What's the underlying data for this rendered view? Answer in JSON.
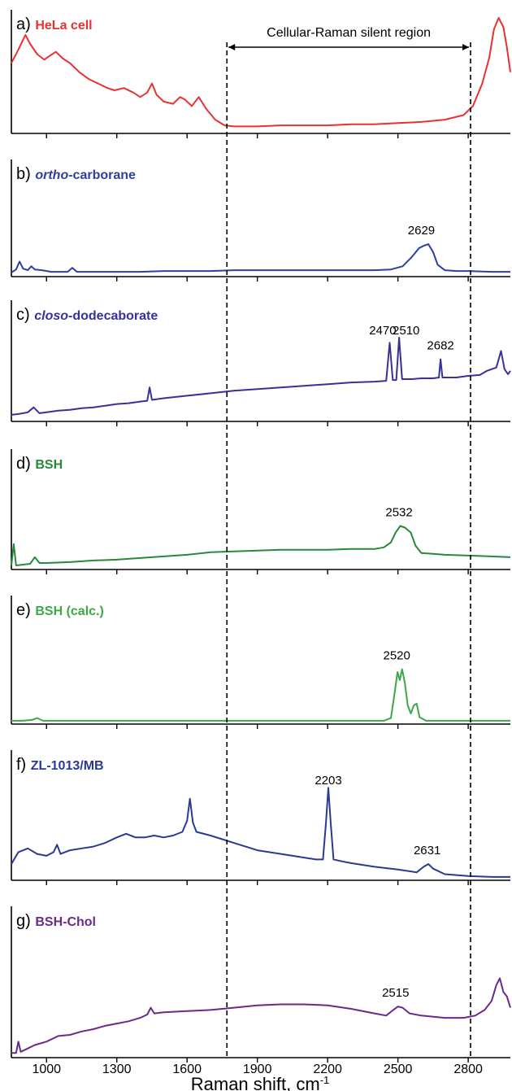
{
  "chart_data": {
    "type": "line",
    "xlabel": "Raman shift, cm",
    "xlabel_sup": "-1",
    "xlim": [
      850,
      2980
    ],
    "x_ticks": [
      "1000",
      "1300",
      "1600",
      "1900",
      "2200",
      "2500",
      "2800"
    ],
    "silent_region": {
      "label": "Cellular-Raman silent region",
      "x_start": 1770,
      "x_end": 2810
    },
    "panels": [
      {
        "letter": "a)",
        "label": "HeLa cell",
        "color": "#e8322f",
        "peak_labels": [],
        "points": [
          [
            850,
            0.6
          ],
          [
            880,
            0.72
          ],
          [
            910,
            0.85
          ],
          [
            930,
            0.77
          ],
          [
            960,
            0.68
          ],
          [
            990,
            0.63
          ],
          [
            1010,
            0.66
          ],
          [
            1040,
            0.7
          ],
          [
            1070,
            0.64
          ],
          [
            1100,
            0.6
          ],
          [
            1140,
            0.52
          ],
          [
            1180,
            0.46
          ],
          [
            1220,
            0.42
          ],
          [
            1260,
            0.38
          ],
          [
            1290,
            0.36
          ],
          [
            1330,
            0.38
          ],
          [
            1370,
            0.34
          ],
          [
            1400,
            0.3
          ],
          [
            1430,
            0.34
          ],
          [
            1450,
            0.42
          ],
          [
            1470,
            0.32
          ],
          [
            1500,
            0.26
          ],
          [
            1540,
            0.24
          ],
          [
            1570,
            0.3
          ],
          [
            1590,
            0.28
          ],
          [
            1620,
            0.22
          ],
          [
            1650,
            0.3
          ],
          [
            1680,
            0.2
          ],
          [
            1720,
            0.1
          ],
          [
            1760,
            0.05
          ],
          [
            1800,
            0.04
          ],
          [
            1900,
            0.04
          ],
          [
            2000,
            0.05
          ],
          [
            2100,
            0.05
          ],
          [
            2200,
            0.05
          ],
          [
            2300,
            0.06
          ],
          [
            2400,
            0.06
          ],
          [
            2500,
            0.07
          ],
          [
            2600,
            0.08
          ],
          [
            2700,
            0.1
          ],
          [
            2780,
            0.14
          ],
          [
            2820,
            0.22
          ],
          [
            2860,
            0.42
          ],
          [
            2890,
            0.65
          ],
          [
            2910,
            0.9
          ],
          [
            2930,
            1.0
          ],
          [
            2950,
            0.92
          ],
          [
            2965,
            0.74
          ],
          [
            2980,
            0.52
          ]
        ]
      },
      {
        "letter": "b)",
        "label": "ortho-carborane",
        "label_italic": "ortho",
        "label_rest": "-carborane",
        "color": "#2f3fa0",
        "peak_labels": [
          {
            "text": "2629",
            "x": 2600
          }
        ],
        "points": [
          [
            850,
            0.02
          ],
          [
            870,
            0.06
          ],
          [
            885,
            0.16
          ],
          [
            900,
            0.07
          ],
          [
            920,
            0.05
          ],
          [
            935,
            0.1
          ],
          [
            950,
            0.06
          ],
          [
            980,
            0.05
          ],
          [
            1000,
            0.04
          ],
          [
            1020,
            0.03
          ],
          [
            1060,
            0.03
          ],
          [
            1090,
            0.03
          ],
          [
            1110,
            0.08
          ],
          [
            1130,
            0.03
          ],
          [
            1200,
            0.03
          ],
          [
            1300,
            0.03
          ],
          [
            1400,
            0.03
          ],
          [
            1500,
            0.04
          ],
          [
            1600,
            0.04
          ],
          [
            1700,
            0.04
          ],
          [
            1800,
            0.05
          ],
          [
            1900,
            0.05
          ],
          [
            2000,
            0.05
          ],
          [
            2100,
            0.05
          ],
          [
            2200,
            0.05
          ],
          [
            2300,
            0.05
          ],
          [
            2400,
            0.05
          ],
          [
            2470,
            0.06
          ],
          [
            2520,
            0.1
          ],
          [
            2560,
            0.22
          ],
          [
            2590,
            0.33
          ],
          [
            2610,
            0.36
          ],
          [
            2630,
            0.38
          ],
          [
            2650,
            0.28
          ],
          [
            2670,
            0.12
          ],
          [
            2700,
            0.05
          ],
          [
            2750,
            0.04
          ],
          [
            2800,
            0.04
          ],
          [
            2900,
            0.03
          ],
          [
            2980,
            0.03
          ]
        ]
      },
      {
        "letter": "c)",
        "label": "closo-dodecaborate",
        "label_italic": "closo",
        "label_rest": "-dodecaborate",
        "color": "#38319a",
        "peak_labels": [
          {
            "text": "2470",
            "x": 2435
          },
          {
            "text": "2510",
            "x": 2535
          },
          {
            "text": "2682",
            "x": 2682
          }
        ],
        "points": [
          [
            850,
            0.05
          ],
          [
            880,
            0.06
          ],
          [
            920,
            0.08
          ],
          [
            945,
            0.14
          ],
          [
            970,
            0.07
          ],
          [
            1000,
            0.08
          ],
          [
            1050,
            0.1
          ],
          [
            1100,
            0.11
          ],
          [
            1150,
            0.13
          ],
          [
            1200,
            0.14
          ],
          [
            1250,
            0.16
          ],
          [
            1300,
            0.18
          ],
          [
            1350,
            0.19
          ],
          [
            1400,
            0.21
          ],
          [
            1430,
            0.22
          ],
          [
            1440,
            0.38
          ],
          [
            1450,
            0.23
          ],
          [
            1500,
            0.25
          ],
          [
            1600,
            0.28
          ],
          [
            1700,
            0.31
          ],
          [
            1800,
            0.34
          ],
          [
            1900,
            0.36
          ],
          [
            2000,
            0.38
          ],
          [
            2100,
            0.4
          ],
          [
            2200,
            0.42
          ],
          [
            2300,
            0.44
          ],
          [
            2400,
            0.45
          ],
          [
            2450,
            0.46
          ],
          [
            2465,
            0.92
          ],
          [
            2478,
            0.47
          ],
          [
            2493,
            0.47
          ],
          [
            2505,
            0.98
          ],
          [
            2518,
            0.48
          ],
          [
            2560,
            0.48
          ],
          [
            2600,
            0.49
          ],
          [
            2650,
            0.49
          ],
          [
            2675,
            0.5
          ],
          [
            2682,
            0.72
          ],
          [
            2690,
            0.5
          ],
          [
            2750,
            0.5
          ],
          [
            2800,
            0.52
          ],
          [
            2850,
            0.53
          ],
          [
            2880,
            0.58
          ],
          [
            2900,
            0.6
          ],
          [
            2920,
            0.62
          ],
          [
            2940,
            0.82
          ],
          [
            2955,
            0.6
          ],
          [
            2970,
            0.54
          ],
          [
            2980,
            0.58
          ]
        ]
      },
      {
        "letter": "d)",
        "label": "BSH",
        "color": "#268a3a",
        "peak_labels": [
          {
            "text": "2532",
            "x": 2505
          }
        ],
        "points": [
          [
            850,
            0.02
          ],
          [
            860,
            0.28
          ],
          [
            870,
            0.02
          ],
          [
            900,
            0.03
          ],
          [
            930,
            0.04
          ],
          [
            950,
            0.12
          ],
          [
            970,
            0.05
          ],
          [
            1000,
            0.05
          ],
          [
            1100,
            0.06
          ],
          [
            1200,
            0.08
          ],
          [
            1300,
            0.09
          ],
          [
            1400,
            0.11
          ],
          [
            1500,
            0.13
          ],
          [
            1600,
            0.15
          ],
          [
            1700,
            0.18
          ],
          [
            1800,
            0.19
          ],
          [
            1900,
            0.2
          ],
          [
            2000,
            0.21
          ],
          [
            2100,
            0.21
          ],
          [
            2200,
            0.21
          ],
          [
            2300,
            0.22
          ],
          [
            2400,
            0.22
          ],
          [
            2440,
            0.24
          ],
          [
            2470,
            0.3
          ],
          [
            2490,
            0.42
          ],
          [
            2510,
            0.5
          ],
          [
            2530,
            0.48
          ],
          [
            2555,
            0.42
          ],
          [
            2575,
            0.26
          ],
          [
            2600,
            0.17
          ],
          [
            2650,
            0.16
          ],
          [
            2700,
            0.15
          ],
          [
            2800,
            0.14
          ],
          [
            2900,
            0.13
          ],
          [
            2980,
            0.12
          ]
        ]
      },
      {
        "letter": "e)",
        "label": "BSH (calc.)",
        "color": "#3ca847",
        "peak_labels": [
          {
            "text": "2520",
            "x": 2495
          }
        ],
        "points": [
          [
            850,
            0.01
          ],
          [
            900,
            0.01
          ],
          [
            940,
            0.02
          ],
          [
            960,
            0.04
          ],
          [
            985,
            0.01
          ],
          [
            1100,
            0.01
          ],
          [
            1400,
            0.01
          ],
          [
            1700,
            0.01
          ],
          [
            2000,
            0.01
          ],
          [
            2300,
            0.01
          ],
          [
            2440,
            0.01
          ],
          [
            2470,
            0.04
          ],
          [
            2485,
            0.3
          ],
          [
            2498,
            0.55
          ],
          [
            2508,
            0.46
          ],
          [
            2518,
            0.58
          ],
          [
            2530,
            0.42
          ],
          [
            2542,
            0.18
          ],
          [
            2555,
            0.09
          ],
          [
            2568,
            0.18
          ],
          [
            2580,
            0.2
          ],
          [
            2592,
            0.05
          ],
          [
            2620,
            0.01
          ],
          [
            2800,
            0.01
          ],
          [
            2980,
            0.01
          ]
        ]
      },
      {
        "letter": "f)",
        "label": "ZL-1013/MB",
        "color": "#2a3a94",
        "peak_labels": [
          {
            "text": "2203",
            "x": 2203
          },
          {
            "text": "2631",
            "x": 2625
          }
        ],
        "points": [
          [
            850,
            0.15
          ],
          [
            880,
            0.28
          ],
          [
            920,
            0.32
          ],
          [
            960,
            0.26
          ],
          [
            1000,
            0.24
          ],
          [
            1030,
            0.28
          ],
          [
            1045,
            0.36
          ],
          [
            1060,
            0.26
          ],
          [
            1100,
            0.3
          ],
          [
            1150,
            0.32
          ],
          [
            1200,
            0.34
          ],
          [
            1250,
            0.38
          ],
          [
            1300,
            0.44
          ],
          [
            1340,
            0.48
          ],
          [
            1380,
            0.44
          ],
          [
            1420,
            0.44
          ],
          [
            1460,
            0.46
          ],
          [
            1500,
            0.44
          ],
          [
            1540,
            0.46
          ],
          [
            1580,
            0.5
          ],
          [
            1600,
            0.62
          ],
          [
            1612,
            0.86
          ],
          [
            1625,
            0.6
          ],
          [
            1640,
            0.5
          ],
          [
            1700,
            0.46
          ],
          [
            1750,
            0.42
          ],
          [
            1800,
            0.38
          ],
          [
            1850,
            0.34
          ],
          [
            1900,
            0.3
          ],
          [
            1950,
            0.28
          ],
          [
            2000,
            0.26
          ],
          [
            2050,
            0.24
          ],
          [
            2100,
            0.22
          ],
          [
            2150,
            0.2
          ],
          [
            2180,
            0.2
          ],
          [
            2193,
            0.6
          ],
          [
            2203,
            0.98
          ],
          [
            2213,
            0.6
          ],
          [
            2225,
            0.2
          ],
          [
            2260,
            0.18
          ],
          [
            2300,
            0.16
          ],
          [
            2400,
            0.12
          ],
          [
            2500,
            0.09
          ],
          [
            2580,
            0.06
          ],
          [
            2610,
            0.12
          ],
          [
            2630,
            0.15
          ],
          [
            2650,
            0.1
          ],
          [
            2700,
            0.04
          ],
          [
            2800,
            0.02
          ],
          [
            2900,
            0.01
          ],
          [
            2980,
            0.01
          ]
        ]
      },
      {
        "letter": "g)",
        "label": "BSH-Chol",
        "color": "#6a2a8a",
        "peak_labels": [
          {
            "text": "2515",
            "x": 2490
          }
        ],
        "points": [
          [
            850,
            0.02
          ],
          [
            870,
            0.02
          ],
          [
            880,
            0.12
          ],
          [
            890,
            0.03
          ],
          [
            920,
            0.06
          ],
          [
            950,
            0.09
          ],
          [
            1000,
            0.12
          ],
          [
            1050,
            0.17
          ],
          [
            1100,
            0.18
          ],
          [
            1150,
            0.21
          ],
          [
            1200,
            0.23
          ],
          [
            1250,
            0.26
          ],
          [
            1300,
            0.28
          ],
          [
            1350,
            0.3
          ],
          [
            1400,
            0.33
          ],
          [
            1430,
            0.36
          ],
          [
            1445,
            0.42
          ],
          [
            1460,
            0.37
          ],
          [
            1500,
            0.38
          ],
          [
            1600,
            0.39
          ],
          [
            1700,
            0.4
          ],
          [
            1800,
            0.42
          ],
          [
            1900,
            0.44
          ],
          [
            2000,
            0.45
          ],
          [
            2100,
            0.45
          ],
          [
            2200,
            0.44
          ],
          [
            2300,
            0.41
          ],
          [
            2400,
            0.37
          ],
          [
            2450,
            0.35
          ],
          [
            2480,
            0.4
          ],
          [
            2500,
            0.43
          ],
          [
            2520,
            0.42
          ],
          [
            2550,
            0.37
          ],
          [
            2600,
            0.35
          ],
          [
            2700,
            0.33
          ],
          [
            2780,
            0.33
          ],
          [
            2830,
            0.35
          ],
          [
            2870,
            0.4
          ],
          [
            2900,
            0.48
          ],
          [
            2920,
            0.62
          ],
          [
            2935,
            0.68
          ],
          [
            2950,
            0.56
          ],
          [
            2965,
            0.52
          ],
          [
            2980,
            0.42
          ]
        ]
      }
    ]
  }
}
